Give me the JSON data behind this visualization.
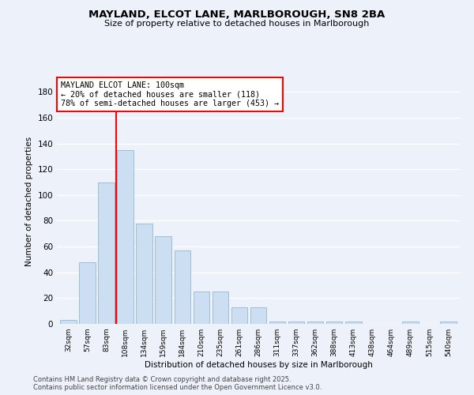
{
  "title_line1": "MAYLAND, ELCOT LANE, MARLBOROUGH, SN8 2BA",
  "title_line2": "Size of property relative to detached houses in Marlborough",
  "xlabel": "Distribution of detached houses by size in Marlborough",
  "ylabel": "Number of detached properties",
  "categories": [
    "32sqm",
    "57sqm",
    "83sqm",
    "108sqm",
    "134sqm",
    "159sqm",
    "184sqm",
    "210sqm",
    "235sqm",
    "261sqm",
    "286sqm",
    "311sqm",
    "337sqm",
    "362sqm",
    "388sqm",
    "413sqm",
    "438sqm",
    "464sqm",
    "489sqm",
    "515sqm",
    "540sqm"
  ],
  "values": [
    3,
    48,
    110,
    135,
    78,
    68,
    57,
    25,
    25,
    13,
    13,
    2,
    2,
    2,
    2,
    2,
    0,
    0,
    2,
    0,
    2
  ],
  "bar_color": "#ccdff2",
  "bar_edge_color": "#a0bcd8",
  "vline_x": 2.5,
  "vline_color": "red",
  "annotation_text": "MAYLAND ELCOT LANE: 100sqm\n← 20% of detached houses are smaller (118)\n78% of semi-detached houses are larger (453) →",
  "annotation_box_color": "white",
  "annotation_box_edge_color": "red",
  "ylim": [
    0,
    190
  ],
  "yticks": [
    0,
    20,
    40,
    60,
    80,
    100,
    120,
    140,
    160,
    180
  ],
  "footer_line1": "Contains HM Land Registry data © Crown copyright and database right 2025.",
  "footer_line2": "Contains public sector information licensed under the Open Government Licence v3.0.",
  "background_color": "#edf2fa",
  "grid_color": "#ffffff"
}
